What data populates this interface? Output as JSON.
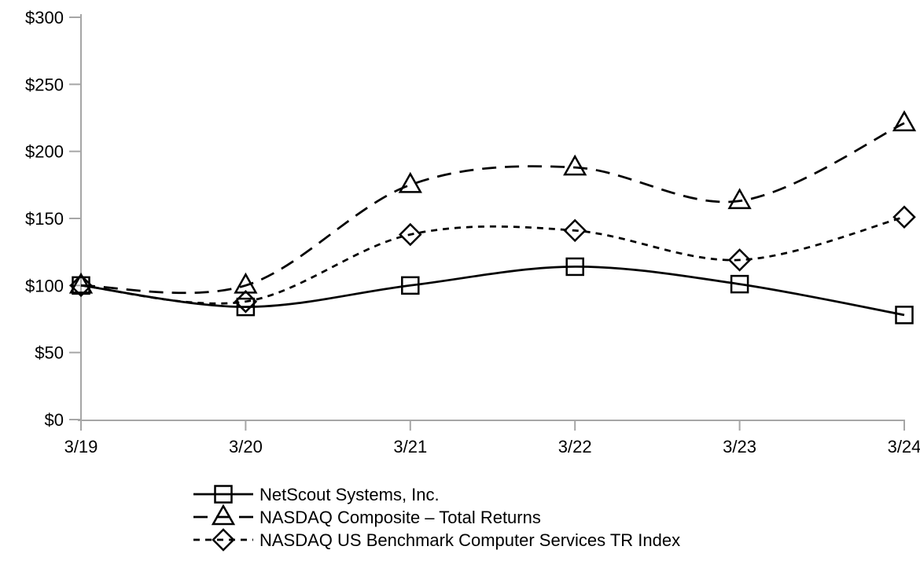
{
  "chart_data": {
    "type": "line",
    "title": "",
    "xlabel": "",
    "ylabel": "",
    "categories": [
      "3/19",
      "3/20",
      "3/21",
      "3/22",
      "3/23",
      "3/24"
    ],
    "series": [
      {
        "name": "NetScout Systems, Inc.",
        "marker": "square",
        "line_style": "solid",
        "values": [
          100,
          84,
          100,
          114,
          101,
          78
        ]
      },
      {
        "name": "NASDAQ Composite – Total Returns",
        "marker": "triangle",
        "line_style": "long-dash",
        "values": [
          100,
          100,
          175,
          188,
          163,
          221
        ]
      },
      {
        "name": "NASDAQ US Benchmark Computer Services TR Index",
        "marker": "diamond",
        "line_style": "short-dash",
        "values": [
          100,
          88,
          138,
          141,
          119,
          151
        ]
      }
    ],
    "ylim": [
      0,
      300
    ],
    "y_tick_step": 50,
    "y_tick_labels": [
      "$0",
      "$50",
      "$100",
      "$150",
      "$200",
      "$250",
      "$300"
    ],
    "grid": "off",
    "legend_position": "bottom-left",
    "curve": "smooth",
    "colors": {
      "series_line": "#000000",
      "axis": "#a6a6a6",
      "text": "#000000",
      "background": "#ffffff"
    }
  }
}
